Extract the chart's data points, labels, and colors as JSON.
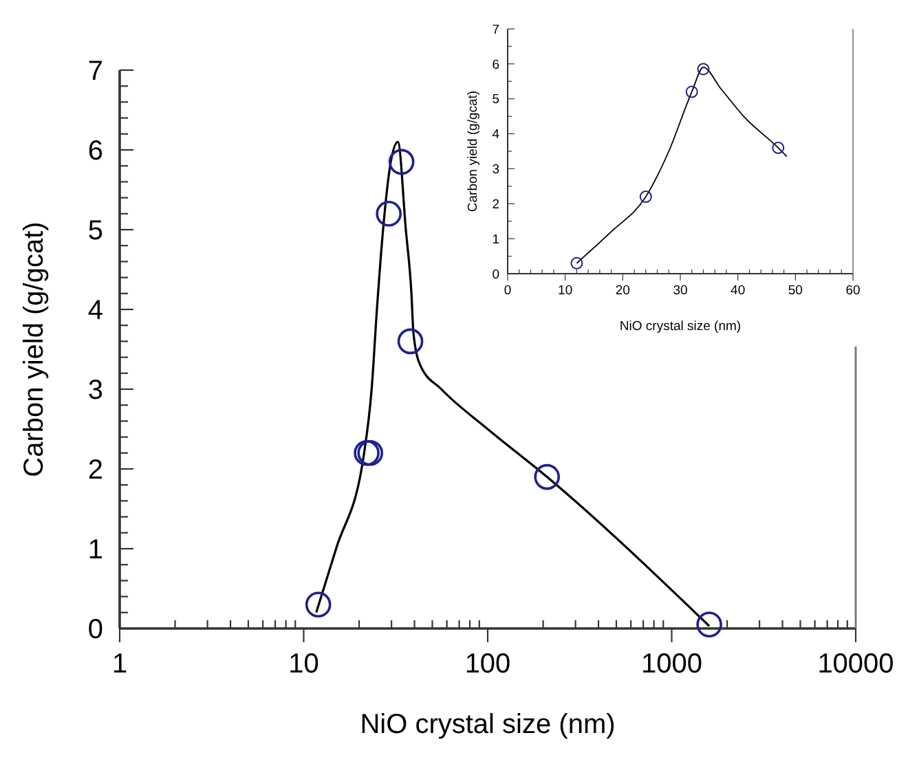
{
  "chart_data": [
    {
      "type": "scatter",
      "xlabel": "NiO crystal size (nm)",
      "ylabel": "Carbon yield (g/gcat)",
      "log": "x",
      "grid": false,
      "xlim": [
        1,
        10000
      ],
      "ylim": [
        0,
        7
      ],
      "xticks": [
        1,
        {
          "value": 2,
          "label": null
        },
        {
          "value": 3,
          "label": null
        },
        {
          "value": 4,
          "label": null
        },
        {
          "value": 5,
          "label": null
        },
        {
          "value": 6,
          "label": null
        },
        {
          "value": 7,
          "label": null
        },
        {
          "value": 8,
          "label": null
        },
        {
          "value": 9,
          "label": null
        },
        10,
        {
          "value": 20,
          "label": null
        },
        {
          "value": 30,
          "label": null
        },
        {
          "value": 40,
          "label": null
        },
        {
          "value": 50,
          "label": null
        },
        {
          "value": 60,
          "label": null
        },
        {
          "value": 70,
          "label": null
        },
        {
          "value": 80,
          "label": null
        },
        {
          "value": 90,
          "label": null
        },
        100,
        {
          "value": 200,
          "label": null
        },
        {
          "value": 300,
          "label": null
        },
        {
          "value": 400,
          "label": null
        },
        {
          "value": 500,
          "label": null
        },
        {
          "value": 600,
          "label": null
        },
        {
          "value": 700,
          "label": null
        },
        {
          "value": 800,
          "label": null
        },
        {
          "value": 900,
          "label": null
        },
        1000,
        {
          "value": 2000,
          "label": null
        },
        {
          "value": 3000,
          "label": null
        },
        {
          "value": 4000,
          "label": null
        },
        {
          "value": 5000,
          "label": null
        },
        {
          "value": 6000,
          "label": null
        },
        {
          "value": 7000,
          "label": null
        },
        {
          "value": 8000,
          "label": null
        },
        {
          "value": 9000,
          "label": null
        },
        10000
      ],
      "yticks": [
        0,
        {
          "value": 0.2,
          "label": null
        },
        {
          "value": 0.4,
          "label": null
        },
        {
          "value": 0.6,
          "label": null
        },
        {
          "value": 0.8,
          "label": null
        },
        1,
        {
          "value": 1.2,
          "label": null
        },
        {
          "value": 1.4,
          "label": null
        },
        {
          "value": 1.6,
          "label": null
        },
        {
          "value": 1.8,
          "label": null
        },
        2,
        {
          "value": 2.2,
          "label": null
        },
        {
          "value": 2.4,
          "label": null
        },
        {
          "value": 2.6,
          "label": null
        },
        {
          "value": 2.8,
          "label": null
        },
        3,
        {
          "value": 3.2,
          "label": null
        },
        {
          "value": 3.4,
          "label": null
        },
        {
          "value": 3.6,
          "label": null
        },
        {
          "value": 3.8,
          "label": null
        },
        4,
        {
          "value": 4.2,
          "label": null
        },
        {
          "value": 4.4,
          "label": null
        },
        {
          "value": 4.6,
          "label": null
        },
        {
          "value": 4.8,
          "label": null
        },
        5,
        {
          "value": 5.2,
          "label": null
        },
        {
          "value": 5.4,
          "label": null
        },
        {
          "value": 5.6,
          "label": null
        },
        {
          "value": 5.8,
          "label": null
        },
        6,
        {
          "value": 6.2,
          "label": null
        },
        {
          "value": 6.4,
          "label": null
        },
        {
          "value": 6.6,
          "label": null
        },
        {
          "value": 6.8,
          "label": null
        },
        7
      ],
      "series": [
        {
          "type": "line",
          "color": "#000000",
          "marker": "none",
          "line_style": "solid",
          "x": [
            11.7,
            15,
            21.3,
            23.4,
            25,
            27,
            29.5,
            32.5,
            35.9,
            38.5,
            39.5,
            43,
            56,
            100,
            210,
            1600
          ],
          "values": [
            0.2,
            1,
            2.2,
            3,
            4,
            5,
            5.8,
            6.1,
            5,
            4.2,
            3.7,
            3.3,
            3.0,
            2.5,
            1.9,
            0.03
          ]
        },
        {
          "color": "#1f1f8f",
          "marker": "circle",
          "x": [
            12,
            22,
            23,
            29,
            34,
            38,
            210,
            1600
          ],
          "values": [
            0.3,
            2.2,
            2.2,
            5.2,
            5.85,
            3.6,
            1.9,
            0.05
          ]
        }
      ]
    },
    {
      "type": "scatter",
      "xlabel": "NiO crystal size (nm)",
      "ylabel": "Carbon yield (g/gcat)",
      "grid": false,
      "xlim": [
        0,
        60
      ],
      "ylim": [
        0,
        7
      ],
      "xticks": [
        0,
        {
          "value": 2,
          "label": null
        },
        {
          "value": 4,
          "label": null
        },
        {
          "value": 6,
          "label": null
        },
        {
          "value": 8,
          "label": null
        },
        10,
        {
          "value": 12,
          "label": null
        },
        {
          "value": 14,
          "label": null
        },
        {
          "value": 16,
          "label": null
        },
        {
          "value": 18,
          "label": null
        },
        20,
        {
          "value": 22,
          "label": null
        },
        {
          "value": 24,
          "label": null
        },
        {
          "value": 26,
          "label": null
        },
        {
          "value": 28,
          "label": null
        },
        30,
        {
          "value": 32,
          "label": null
        },
        {
          "value": 34,
          "label": null
        },
        {
          "value": 36,
          "label": null
        },
        {
          "value": 38,
          "label": null
        },
        40,
        {
          "value": 42,
          "label": null
        },
        {
          "value": 44,
          "label": null
        },
        {
          "value": 46,
          "label": null
        },
        {
          "value": 48,
          "label": null
        },
        50,
        {
          "value": 52,
          "label": null
        },
        {
          "value": 54,
          "label": null
        },
        {
          "value": 56,
          "label": null
        },
        {
          "value": 58,
          "label": null
        },
        60
      ],
      "yticks": [
        0,
        {
          "value": 0.5,
          "label": null
        },
        1,
        {
          "value": 1.5,
          "label": null
        },
        2,
        {
          "value": 2.5,
          "label": null
        },
        3,
        {
          "value": 3.5,
          "label": null
        },
        4,
        {
          "value": 4.5,
          "label": null
        },
        5,
        {
          "value": 5.5,
          "label": null
        },
        6,
        {
          "value": 6.5,
          "label": null
        },
        7
      ],
      "series": [
        {
          "type": "line",
          "color": "#000000",
          "marker": "none",
          "line_style": "solid",
          "x": [
            12,
            18,
            24,
            28,
            32,
            34,
            37,
            41,
            47,
            48.5
          ],
          "values": [
            0.3,
            1.2,
            2.2,
            3.5,
            5.2,
            5.9,
            5.3,
            4.5,
            3.6,
            3.35
          ]
        },
        {
          "color": "#1f1f8f",
          "marker": "circle",
          "x": [
            12,
            24,
            32,
            34,
            47
          ],
          "values": [
            0.3,
            2.2,
            5.2,
            5.85,
            3.6
          ]
        }
      ]
    }
  ]
}
